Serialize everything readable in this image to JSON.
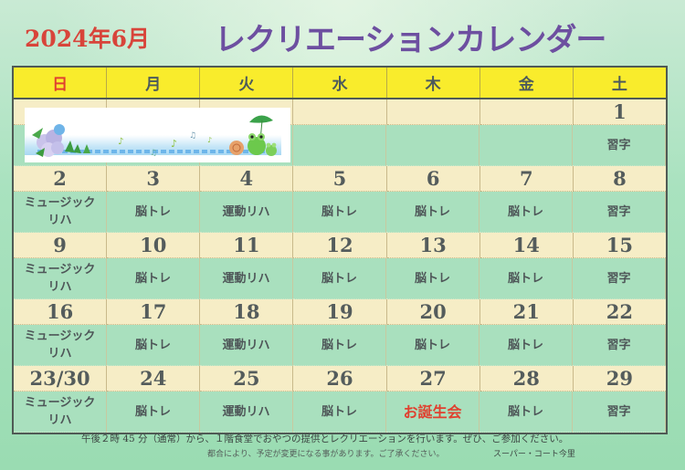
{
  "title": {
    "date": "2024年6月",
    "main": "レクリエーションカレンダー",
    "date_color": "#d8443a",
    "main_color": "#6d4fa0"
  },
  "weekdays": [
    "日",
    "月",
    "火",
    "水",
    "木",
    "金",
    "土"
  ],
  "weeks": [
    {
      "days": [
        "",
        "",
        "",
        "",
        "",
        "",
        "1"
      ],
      "activities": [
        "",
        "",
        "",
        "",
        "",
        "",
        "習字"
      ],
      "banner": "hydrangea-frog-illustration"
    },
    {
      "days": [
        "2",
        "3",
        "4",
        "5",
        "6",
        "7",
        "8"
      ],
      "activities": [
        "ミュージック|リハ",
        "脳トレ",
        "運動リハ",
        "脳トレ",
        "脳トレ",
        "脳トレ",
        "習字"
      ]
    },
    {
      "days": [
        "9",
        "10",
        "11",
        "12",
        "13",
        "14",
        "15"
      ],
      "activities": [
        "ミュージック|リハ",
        "脳トレ",
        "運動リハ",
        "脳トレ",
        "脳トレ",
        "脳トレ",
        "習字"
      ]
    },
    {
      "days": [
        "16",
        "17",
        "18",
        "19",
        "20",
        "21",
        "22"
      ],
      "activities": [
        "ミュージック|リハ",
        "脳トレ",
        "運動リハ",
        "脳トレ",
        "脳トレ",
        "脳トレ",
        "習字"
      ]
    },
    {
      "days": [
        "23/30",
        "24",
        "25",
        "26",
        "27",
        "28",
        "29"
      ],
      "activities": [
        "ミュージック|リハ",
        "脳トレ",
        "運動リハ",
        "脳トレ",
        "お誕生会",
        "脳トレ",
        "習字"
      ]
    }
  ],
  "highlight": {
    "text": "お誕生会",
    "color": "#e0402f"
  },
  "footer": {
    "line1": "午後２時 45 分（通常）から、１階食堂でおやつの提供とレクリエーションを行います。ぜひ、ご参加ください。",
    "line2": "都合により、予定が変更になる事があります。ご了承ください。",
    "facility": "スーパー・コート今里"
  },
  "colors": {
    "header_bg": "#f9ec2c",
    "day_row_bg": "#f6edc6",
    "activity_row_bg": "#a9e0be",
    "sunday": "#e0412f"
  }
}
